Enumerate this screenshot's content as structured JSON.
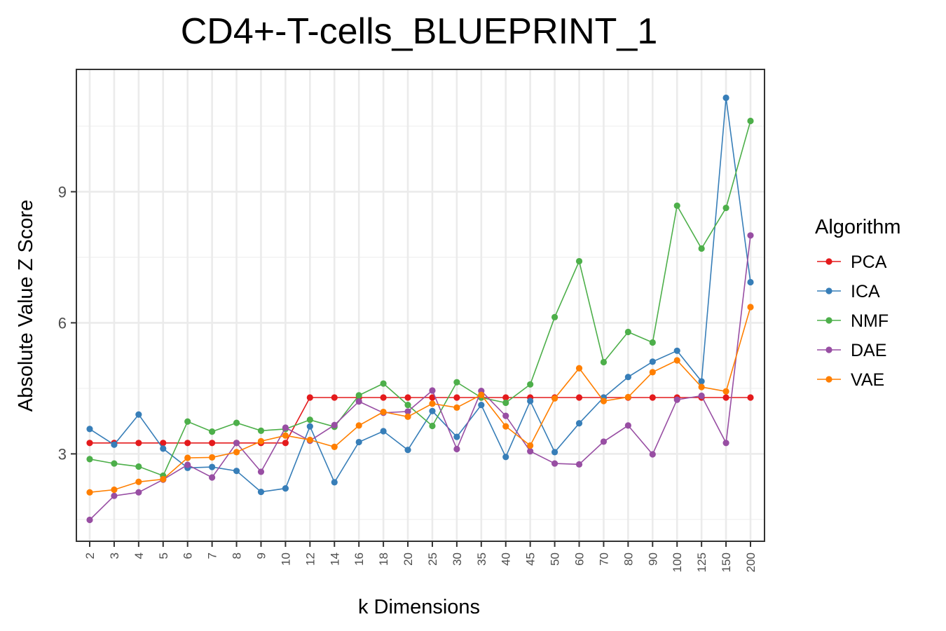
{
  "chart_data": {
    "type": "line",
    "title": "CD4+-T-cells_BLUEPRINT_1",
    "xlabel": "k Dimensions",
    "ylabel": "Absolute Value Z Score",
    "categories": [
      "2",
      "3",
      "4",
      "5",
      "6",
      "7",
      "8",
      "9",
      "10",
      "12",
      "14",
      "16",
      "18",
      "20",
      "25",
      "30",
      "35",
      "40",
      "45",
      "50",
      "60",
      "70",
      "80",
      "90",
      "100",
      "125",
      "150",
      "200"
    ],
    "ylim": [
      1.0,
      11.8
    ],
    "yticks": [
      3,
      6,
      9
    ],
    "grid": true,
    "legend": {
      "title": "Algorithm",
      "position": "right"
    },
    "series": [
      {
        "name": "PCA",
        "color": "#e41a1c",
        "values": [
          3.25,
          3.25,
          3.25,
          3.25,
          3.25,
          3.25,
          3.25,
          3.25,
          3.25,
          4.29,
          4.29,
          4.29,
          4.29,
          4.29,
          4.29,
          4.29,
          4.29,
          4.29,
          4.29,
          4.29,
          4.29,
          4.29,
          4.29,
          4.29,
          4.29,
          4.29,
          4.29,
          4.29
        ]
      },
      {
        "name": "ICA",
        "color": "#377eb8",
        "values": [
          3.57,
          3.21,
          3.9,
          3.12,
          2.68,
          2.7,
          2.61,
          2.13,
          2.21,
          3.63,
          2.35,
          3.27,
          3.52,
          3.09,
          3.98,
          3.39,
          4.12,
          2.93,
          4.21,
          3.04,
          3.7,
          4.29,
          4.76,
          5.11,
          5.36,
          4.66,
          11.15,
          6.93
        ]
      },
      {
        "name": "NMF",
        "color": "#4daf4a",
        "values": [
          2.88,
          2.78,
          2.71,
          2.5,
          3.74,
          3.51,
          3.71,
          3.53,
          3.57,
          3.78,
          3.62,
          4.34,
          4.61,
          4.12,
          3.64,
          4.64,
          4.29,
          4.17,
          4.59,
          6.13,
          7.41,
          5.1,
          5.79,
          5.55,
          8.68,
          7.7,
          8.63,
          10.62
        ]
      },
      {
        "name": "DAE",
        "color": "#984ea3",
        "values": [
          1.49,
          2.04,
          2.12,
          2.41,
          2.75,
          2.46,
          3.25,
          2.59,
          3.6,
          3.3,
          3.66,
          4.2,
          3.94,
          3.97,
          4.45,
          3.11,
          4.44,
          3.87,
          3.06,
          2.78,
          2.76,
          3.28,
          3.65,
          2.99,
          4.24,
          4.33,
          3.25,
          8.0
        ]
      },
      {
        "name": "VAE",
        "color": "#ff7f00",
        "values": [
          2.12,
          2.18,
          2.36,
          2.42,
          2.91,
          2.92,
          3.04,
          3.29,
          3.42,
          3.32,
          3.16,
          3.65,
          3.96,
          3.85,
          4.15,
          4.06,
          4.35,
          3.63,
          3.19,
          4.27,
          4.96,
          4.21,
          4.3,
          4.87,
          5.14,
          4.53,
          4.43,
          6.36
        ]
      }
    ]
  }
}
